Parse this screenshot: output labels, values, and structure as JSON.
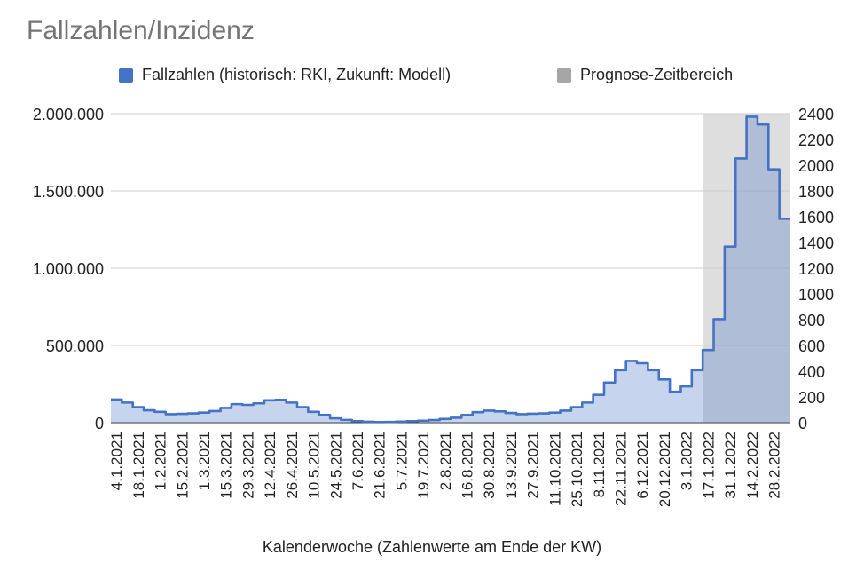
{
  "colors": {
    "series": "#4472c4",
    "series_fill": "#c5d1eb",
    "forecast": "#a6a6a6",
    "forecast_band": "#dedede",
    "grid": "#cccccc",
    "text": "#222222",
    "title": "#757575"
  },
  "chart_data": {
    "type": "area",
    "title": "Fallzahlen/Inzidenz",
    "xlabel": "Kalenderwoche (Zahlenwerte am Ende der KW)",
    "legend_position": "top",
    "grid": true,
    "step": true,
    "series": [
      {
        "name": "Fallzahlen (historisch: RKI, Zukunft: Modell)",
        "values": [
          150000,
          130000,
          100000,
          80000,
          70000,
          55000,
          57000,
          60000,
          65000,
          75000,
          95000,
          120000,
          115000,
          125000,
          145000,
          148000,
          130000,
          100000,
          70000,
          50000,
          28000,
          18000,
          10000,
          6000,
          4000,
          5000,
          7000,
          10000,
          13000,
          17000,
          24000,
          32000,
          50000,
          68000,
          78000,
          73000,
          63000,
          55000,
          58000,
          60000,
          65000,
          78000,
          100000,
          130000,
          180000,
          260000,
          340000,
          400000,
          385000,
          340000,
          280000,
          200000,
          235000,
          340000,
          470000,
          670000,
          1140000,
          1710000,
          1980000,
          1930000,
          1640000,
          1320000
        ]
      },
      {
        "name": "Prognose-Zeitbereich",
        "range_weeks": [
          "17.1.2022",
          "28.2.2022"
        ]
      }
    ],
    "x_tick_labels": [
      "4.1.2021",
      "18.1.2021",
      "1.2.2021",
      "15.2.2021",
      "1.3.2021",
      "15.3.2021",
      "29.3.2021",
      "12.4.2021",
      "26.4.2021",
      "10.5.2021",
      "24.5.2021",
      "7.6.2021",
      "21.6.2021",
      "5.7.2021",
      "19.7.2021",
      "2.8.2021",
      "16.8.2021",
      "30.8.2021",
      "13.9.2021",
      "27.9.2021",
      "11.10.2021",
      "25.10.2021",
      "8.11.2021",
      "22.11.2021",
      "6.12.2021",
      "20.12.2021",
      "3.1.2022",
      "17.1.2022",
      "31.1.2022",
      "14.2.2022",
      "28.2.2022"
    ],
    "y_left": {
      "ylim": [
        0,
        2000000
      ],
      "ticks": [
        "0",
        "500.000",
        "1.000.000",
        "1.500.000",
        "2.000.000"
      ]
    },
    "y_right": {
      "ylim": [
        0,
        2400
      ],
      "ticks": [
        "0",
        "200",
        "400",
        "600",
        "800",
        "1000",
        "1200",
        "1400",
        "1600",
        "1800",
        "2000",
        "2200",
        "2400"
      ]
    }
  }
}
